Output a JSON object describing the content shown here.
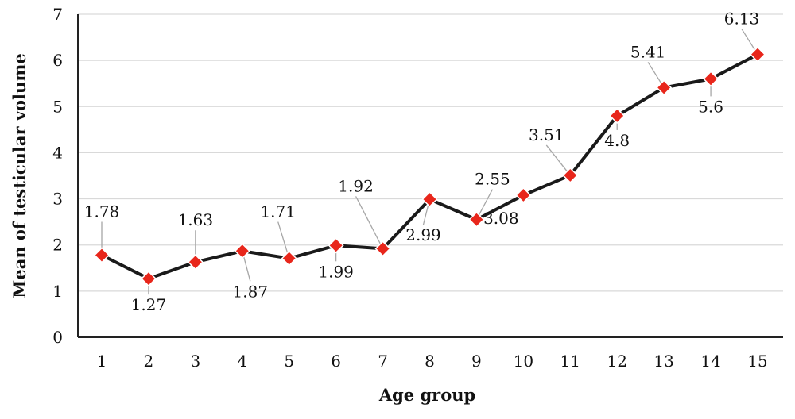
{
  "chart_data": {
    "type": "line",
    "title": "",
    "xlabel": "Age group",
    "ylabel": "Mean of testicular volume",
    "categories": [
      "1",
      "2",
      "3",
      "4",
      "5",
      "6",
      "7",
      "8",
      "9",
      "10",
      "11",
      "12",
      "13",
      "14",
      "15"
    ],
    "series": [
      {
        "values": [
          1.78,
          1.27,
          1.63,
          1.87,
          1.71,
          1.99,
          1.92,
          2.99,
          2.55,
          3.08,
          3.51,
          4.8,
          5.41,
          5.6,
          6.13
        ],
        "labels": [
          "1.78",
          "1.27",
          "1.63",
          "1.87",
          "1.71",
          "1.99",
          "1.92",
          "2.99",
          "2.55",
          "3.08",
          "3.51",
          "4.8",
          "5.41",
          "5.6",
          "6.13"
        ],
        "line_color": "#1a1a1a",
        "marker_color": "#e8261b",
        "marker": "diamond"
      }
    ],
    "ylim": [
      0,
      7
    ],
    "yticks": [
      "0",
      "1",
      "2",
      "3",
      "4",
      "5",
      "6",
      "7"
    ],
    "grid": true,
    "legend": "none"
  }
}
